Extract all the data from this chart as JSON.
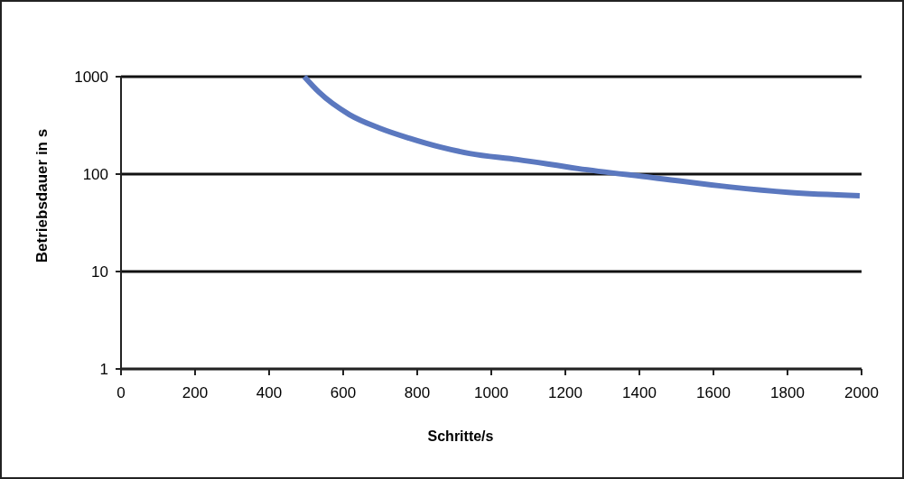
{
  "chart_data": {
    "type": "line",
    "xlabel": "Schritte/s",
    "ylabel": "Betriebsdauer in s",
    "log": "y",
    "grid": "y",
    "marker": "none",
    "line_style": "solid",
    "xlim": [
      0,
      2000
    ],
    "xticks": [
      0,
      200,
      400,
      600,
      800,
      1000,
      1200,
      1400,
      1600,
      1800,
      2000
    ],
    "ylim": [
      1,
      1000
    ],
    "yticks": [
      1,
      10,
      100,
      1000
    ],
    "series": [
      {
        "color": "#5b78bf",
        "x": [
          495,
          534,
          617,
          698,
          778,
          861,
          941,
          1071,
          1234,
          1437,
          1641,
          1802,
          1995
        ],
        "values": [
          1000,
          697,
          408,
          297,
          234,
          190,
          163,
          141,
          114,
          92,
          74,
          65,
          60
        ]
      }
    ]
  }
}
